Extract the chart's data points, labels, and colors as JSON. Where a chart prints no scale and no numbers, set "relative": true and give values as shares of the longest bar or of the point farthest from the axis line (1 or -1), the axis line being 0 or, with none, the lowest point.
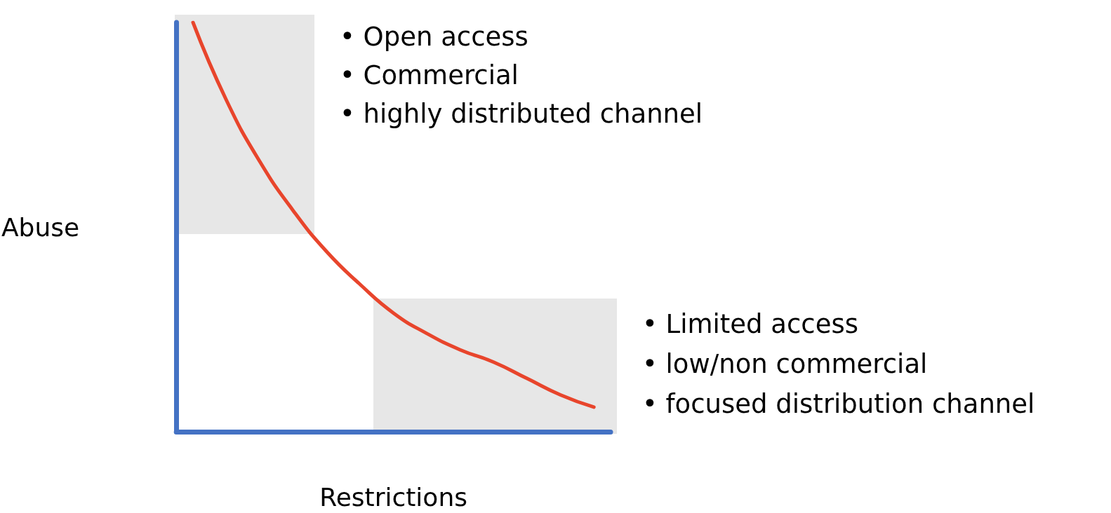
{
  "chart_data": {
    "type": "line",
    "relative": true,
    "xlabel": "Restrictions",
    "ylabel": "Abuse",
    "categories": [
      null,
      null,
      null,
      null,
      null,
      null,
      null,
      null,
      null,
      null,
      null,
      null,
      null
    ],
    "series": [
      {
        "color": "#e8452c",
        "values": [
          1,
          0.81,
          0.66,
          0.54,
          0.44,
          0.36,
          0.29,
          0.24,
          0.2,
          0.17,
          0.13,
          0.09,
          0.06
        ]
      }
    ],
    "annotations": [
      "• Open access",
      "• Commercial",
      "• highly distributed channel",
      "• Limited access",
      "• low/non commercial",
      "• focused distribution channel"
    ],
    "marker": "none",
    "line_style": "solid"
  }
}
